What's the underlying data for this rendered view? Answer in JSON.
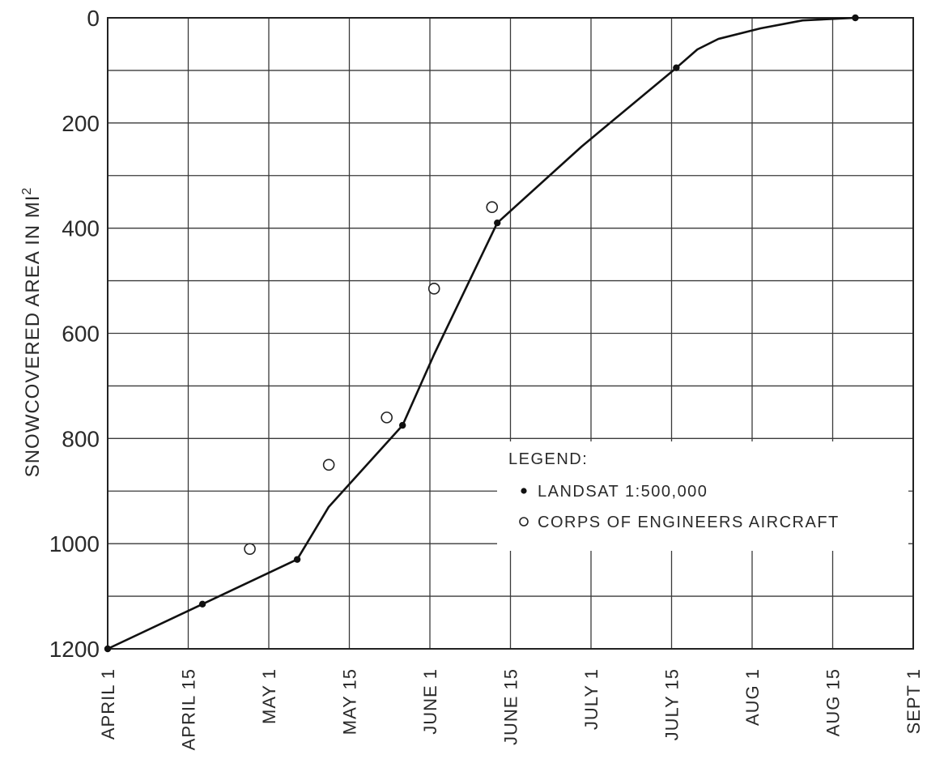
{
  "chart_data": {
    "type": "line",
    "ylabel": "SNOWCOVERED AREA IN MI",
    "ylabel_superscript": "2",
    "x_ticks": [
      "APRIL 1",
      "APRIL 15",
      "MAY 1",
      "MAY 15",
      "JUNE 1",
      "JUNE 15",
      "JULY 1",
      "JULY 15",
      "AUG 1",
      "AUG 15",
      "SEPT 1"
    ],
    "y_ticks": [
      "0",
      "200",
      "400",
      "600",
      "800",
      "1000",
      "1200"
    ],
    "ylim": [
      1200,
      0
    ],
    "y_inverted": true,
    "grid": true,
    "x_unit": "days after April 1",
    "legend": {
      "title": "LEGEND:",
      "placement": "lower-right",
      "entries": [
        {
          "label": "LANDSAT 1:500,000",
          "marker": "filled-dot"
        },
        {
          "label": "CORPS OF ENGINEERS AIRCRAFT",
          "marker": "open-circle"
        }
      ]
    },
    "series": [
      {
        "name": "LANDSAT 1:500,000",
        "marker": "filled-dot",
        "connected": true,
        "points": [
          {
            "x": 0,
            "y": 1200
          },
          {
            "x": 18,
            "y": 1115
          },
          {
            "x": 36,
            "y": 1030
          },
          {
            "x": 56,
            "y": 775
          },
          {
            "x": 74,
            "y": 390
          },
          {
            "x": 108,
            "y": 95
          },
          {
            "x": 142,
            "y": 0
          }
        ]
      },
      {
        "name": "CORPS OF ENGINEERS AIRCRAFT",
        "marker": "open-circle",
        "connected": false,
        "points": [
          {
            "x": 27,
            "y": 1010
          },
          {
            "x": 42,
            "y": 850
          },
          {
            "x": 53,
            "y": 760
          },
          {
            "x": 62,
            "y": 515
          },
          {
            "x": 73,
            "y": 360
          }
        ]
      }
    ],
    "curve": [
      {
        "x": 0,
        "y": 1200
      },
      {
        "x": 18,
        "y": 1115
      },
      {
        "x": 36,
        "y": 1030
      },
      {
        "x": 42,
        "y": 930
      },
      {
        "x": 56,
        "y": 775
      },
      {
        "x": 62,
        "y": 640
      },
      {
        "x": 74,
        "y": 390
      },
      {
        "x": 90,
        "y": 245
      },
      {
        "x": 108,
        "y": 95
      },
      {
        "x": 112,
        "y": 60
      },
      {
        "x": 116,
        "y": 40
      },
      {
        "x": 124,
        "y": 20
      },
      {
        "x": 132,
        "y": 5
      },
      {
        "x": 142,
        "y": 0
      }
    ]
  }
}
